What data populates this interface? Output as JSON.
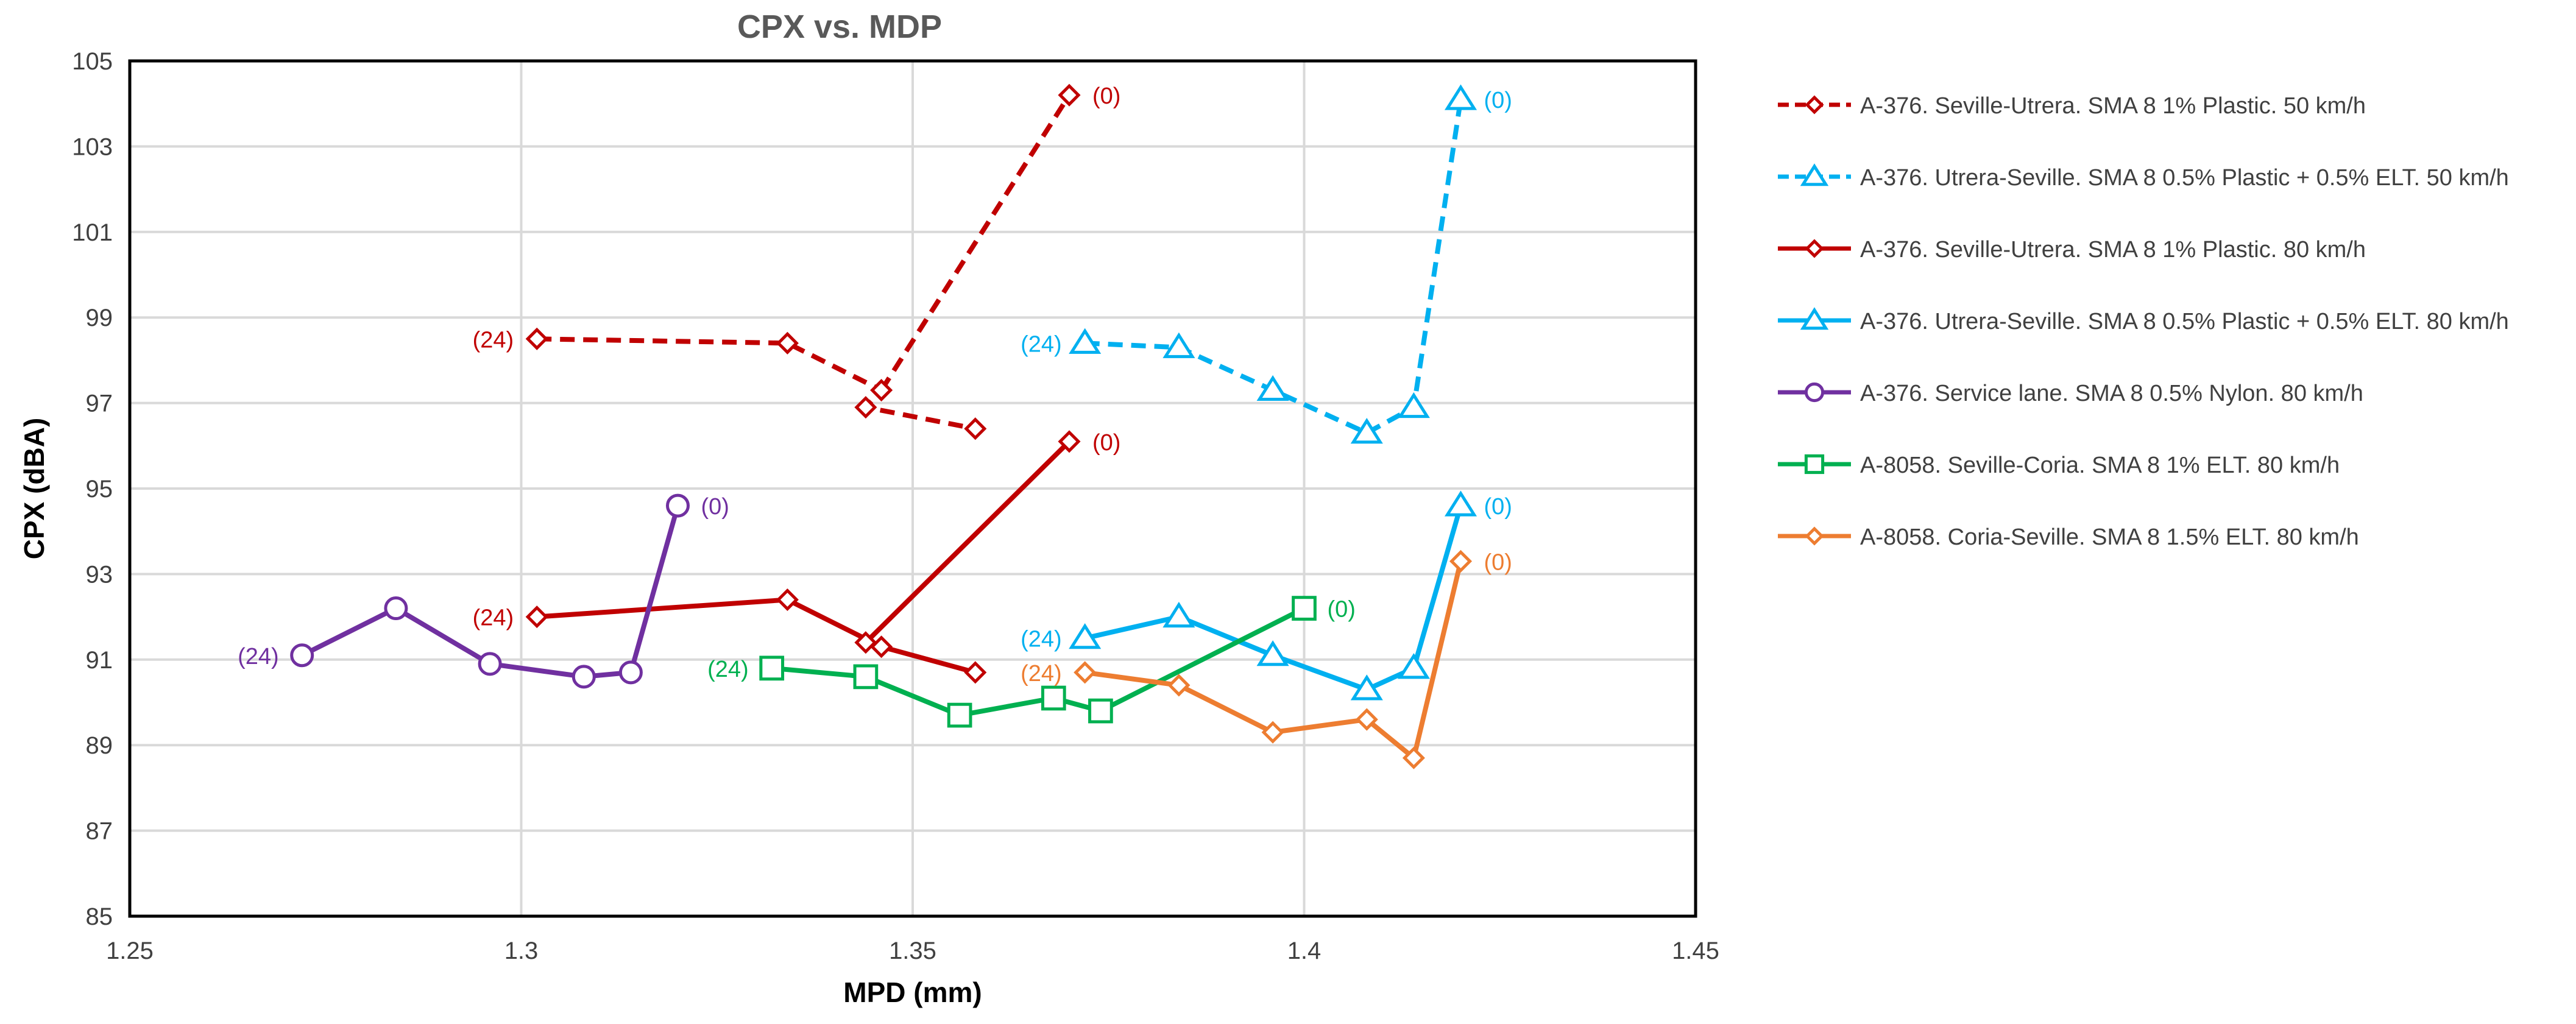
{
  "chart_data": {
    "type": "line",
    "title": "CPX vs. MDP",
    "xlabel": "MPD (mm)",
    "ylabel": "CPX (dBA)",
    "xlim": [
      1.25,
      1.45
    ],
    "ylim": [
      85,
      105
    ],
    "xticks": [
      1.25,
      1.3,
      1.35,
      1.4,
      1.45
    ],
    "xtick_labels": [
      "1.25",
      "1.3",
      "1.35",
      "1.4",
      "1.45"
    ],
    "yticks": [
      85,
      87,
      89,
      91,
      93,
      95,
      97,
      99,
      101,
      103,
      105
    ],
    "ytick_labels": [
      "85",
      "87",
      "89",
      "91",
      "93",
      "95",
      "97",
      "99",
      "101",
      "103",
      "105"
    ],
    "grid": true,
    "legend_position": "right",
    "series": [
      {
        "name": "A-376. Seville-Utrera. SMA 8 1% Plastic. 50 km/h",
        "color": "#C00000",
        "dash": true,
        "marker": "diamond",
        "x": [
          1.302,
          1.334,
          1.344,
          1.346,
          1.358,
          1.37
        ],
        "y": [
          98.5,
          98.4,
          96.9,
          97.3,
          96.4,
          104.2
        ],
        "path_order": [
          0,
          1,
          3,
          2,
          4
        ],
        "final_link": [
          3,
          5
        ],
        "point_labels": [
          {
            "index": 0,
            "text": "(24)",
            "side": "left"
          },
          {
            "index": 5,
            "text": "(0)",
            "side": "right"
          }
        ]
      },
      {
        "name": "A-376. Utrera-Seville. SMA 8 0.5% Plastic + 0.5% ELT. 50 km/h",
        "color": "#00B0F0",
        "dash": true,
        "marker": "triangle",
        "x": [
          1.372,
          1.384,
          1.396,
          1.408,
          1.414,
          1.42
        ],
        "y": [
          98.4,
          98.3,
          97.3,
          96.3,
          96.9,
          104.1
        ],
        "point_labels": [
          {
            "index": 0,
            "text": "(24)",
            "side": "left"
          },
          {
            "index": 5,
            "text": "(0)",
            "side": "right"
          }
        ]
      },
      {
        "name": "A-376. Seville-Utrera. SMA 8 1% Plastic. 80 km/h",
        "color": "#C00000",
        "dash": false,
        "marker": "diamond",
        "x": [
          1.302,
          1.334,
          1.344,
          1.346,
          1.358,
          1.37
        ],
        "y": [
          92.0,
          92.4,
          91.4,
          91.3,
          90.7,
          96.1
        ],
        "path_order": [
          0,
          1,
          3,
          4
        ],
        "final_link": [
          2,
          5
        ],
        "point_labels": [
          {
            "index": 0,
            "text": "(24)",
            "side": "left"
          },
          {
            "index": 5,
            "text": "(0)",
            "side": "right"
          }
        ]
      },
      {
        "name": "A-376. Utrera-Seville. SMA 8 0.5% Plastic + 0.5% ELT. 80 km/h",
        "color": "#00B0F0",
        "dash": false,
        "marker": "triangle",
        "x": [
          1.372,
          1.384,
          1.396,
          1.408,
          1.414,
          1.42
        ],
        "y": [
          91.5,
          92.0,
          91.1,
          90.3,
          90.8,
          94.6
        ],
        "point_labels": [
          {
            "index": 0,
            "text": "(24)",
            "side": "left"
          },
          {
            "index": 5,
            "text": "(0)",
            "side": "right"
          }
        ]
      },
      {
        "name": "A-376. Service lane. SMA 8 0.5% Nylon. 80 km/h",
        "color": "#7030A0",
        "dash": false,
        "marker": "circle",
        "x": [
          1.272,
          1.284,
          1.296,
          1.308,
          1.314,
          1.32
        ],
        "y": [
          91.1,
          92.2,
          90.9,
          90.6,
          90.7,
          94.6
        ],
        "point_labels": [
          {
            "index": 0,
            "text": "(24)",
            "side": "left"
          },
          {
            "index": 5,
            "text": "(0)",
            "side": "right"
          }
        ]
      },
      {
        "name": "A-8058. Seville-Coria. SMA 8 1% ELT. 80 km/h",
        "color": "#00B050",
        "dash": false,
        "marker": "square",
        "x": [
          1.332,
          1.344,
          1.356,
          1.368,
          1.374,
          1.4
        ],
        "y": [
          90.8,
          90.6,
          89.7,
          90.1,
          89.8,
          92.2
        ],
        "point_labels": [
          {
            "index": 0,
            "text": "(24)",
            "side": "left"
          },
          {
            "index": 5,
            "text": "(0)",
            "side": "right"
          }
        ]
      },
      {
        "name": "A-8058. Coria-Seville. SMA 8 1.5% ELT. 80 km/h",
        "color": "#ED7D31",
        "dash": false,
        "marker": "diamond",
        "x": [
          1.372,
          1.384,
          1.396,
          1.408,
          1.414,
          1.42
        ],
        "y": [
          90.7,
          90.4,
          89.3,
          89.6,
          88.7,
          93.3
        ],
        "point_labels": [
          {
            "index": 0,
            "text": "(24)",
            "side": "left"
          },
          {
            "index": 5,
            "text": "(0)",
            "side": "right"
          }
        ]
      }
    ]
  }
}
